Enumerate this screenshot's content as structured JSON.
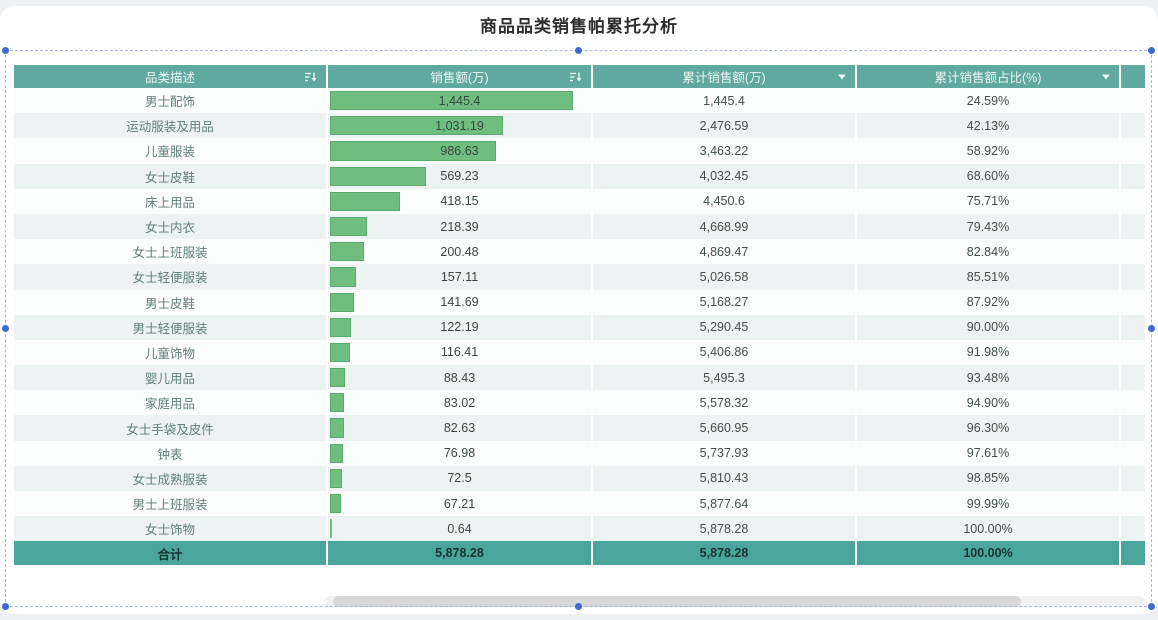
{
  "title": "商品品类销售帕累托分析",
  "table": {
    "columns": [
      {
        "label": "品类描述",
        "icon": "sort-icon"
      },
      {
        "label": "销售额(万)",
        "icon": "sort-icon"
      },
      {
        "label": "累计销售额(万)",
        "icon": "dropdown-icon"
      },
      {
        "label": "累计销售额占比(%)",
        "icon": "dropdown-icon"
      }
    ],
    "rows": [
      {
        "category": "男士配饰",
        "sales": "1,445.4",
        "sales_value": 1445.4,
        "cumulative": "1,445.4",
        "pct": "24.59%"
      },
      {
        "category": "运动服装及用品",
        "sales": "1,031.19",
        "sales_value": 1031.19,
        "cumulative": "2,476.59",
        "pct": "42.13%"
      },
      {
        "category": "儿童服装",
        "sales": "986.63",
        "sales_value": 986.63,
        "cumulative": "3,463.22",
        "pct": "58.92%"
      },
      {
        "category": "女士皮鞋",
        "sales": "569.23",
        "sales_value": 569.23,
        "cumulative": "4,032.45",
        "pct": "68.60%"
      },
      {
        "category": "床上用品",
        "sales": "418.15",
        "sales_value": 418.15,
        "cumulative": "4,450.6",
        "pct": "75.71%"
      },
      {
        "category": "女士内衣",
        "sales": "218.39",
        "sales_value": 218.39,
        "cumulative": "4,668.99",
        "pct": "79.43%"
      },
      {
        "category": "女士上班服装",
        "sales": "200.48",
        "sales_value": 200.48,
        "cumulative": "4,869.47",
        "pct": "82.84%"
      },
      {
        "category": "女士轻便服装",
        "sales": "157.11",
        "sales_value": 157.11,
        "cumulative": "5,026.58",
        "pct": "85.51%"
      },
      {
        "category": "男士皮鞋",
        "sales": "141.69",
        "sales_value": 141.69,
        "cumulative": "5,168.27",
        "pct": "87.92%"
      },
      {
        "category": "男士轻便服装",
        "sales": "122.19",
        "sales_value": 122.19,
        "cumulative": "5,290.45",
        "pct": "90.00%"
      },
      {
        "category": "儿童饰物",
        "sales": "116.41",
        "sales_value": 116.41,
        "cumulative": "5,406.86",
        "pct": "91.98%"
      },
      {
        "category": "婴儿用品",
        "sales": "88.43",
        "sales_value": 88.43,
        "cumulative": "5,495.3",
        "pct": "93.48%"
      },
      {
        "category": "家庭用品",
        "sales": "83.02",
        "sales_value": 83.02,
        "cumulative": "5,578.32",
        "pct": "94.90%"
      },
      {
        "category": "女士手袋及皮件",
        "sales": "82.63",
        "sales_value": 82.63,
        "cumulative": "5,660.95",
        "pct": "96.30%"
      },
      {
        "category": "钟表",
        "sales": "76.98",
        "sales_value": 76.98,
        "cumulative": "5,737.93",
        "pct": "97.61%"
      },
      {
        "category": "女士成熟服装",
        "sales": "72.5",
        "sales_value": 72.5,
        "cumulative": "5,810.43",
        "pct": "98.85%"
      },
      {
        "category": "男士上班服装",
        "sales": "67.21",
        "sales_value": 67.21,
        "cumulative": "5,877.64",
        "pct": "99.99%"
      },
      {
        "category": "女士饰物",
        "sales": "0.64",
        "sales_value": 0.64,
        "cumulative": "5,878.28",
        "pct": "100.00%"
      }
    ],
    "total": {
      "label": "合计",
      "sales": "5,878.28",
      "cumulative": "5,878.28",
      "pct": "100.00%"
    }
  },
  "colors": {
    "header_bg": "#5fa9a1",
    "total_bg": "#4aa69c",
    "bar_fill": "#6fbe80",
    "bar_border": "#5aab6f",
    "row_alt_bg": "#edf3f2",
    "selection_handle_blue": "#3e69cf",
    "selection_dash": "#a9b8da"
  },
  "chart_data": {
    "type": "table",
    "title": "商品品类销售帕累托分析",
    "columns": [
      "品类描述",
      "销售额(万)",
      "累计销售额(万)",
      "累计销售额占比(%)"
    ],
    "categories": [
      "男士配饰",
      "运动服装及用品",
      "儿童服装",
      "女士皮鞋",
      "床上用品",
      "女士内衣",
      "女士上班服装",
      "女士轻便服装",
      "男士皮鞋",
      "男士轻便服装",
      "儿童饰物",
      "婴儿用品",
      "家庭用品",
      "女士手袋及皮件",
      "钟表",
      "女士成熟服装",
      "男士上班服装",
      "女士饰物"
    ],
    "series": [
      {
        "name": "销售额(万)",
        "values": [
          1445.4,
          1031.19,
          986.63,
          569.23,
          418.15,
          218.39,
          200.48,
          157.11,
          141.69,
          122.19,
          116.41,
          88.43,
          83.02,
          82.63,
          76.98,
          72.5,
          67.21,
          0.64
        ]
      },
      {
        "name": "累计销售额(万)",
        "values": [
          1445.4,
          2476.59,
          3463.22,
          4032.45,
          4450.6,
          4668.99,
          4869.47,
          5026.58,
          5168.27,
          5290.45,
          5406.86,
          5495.3,
          5578.32,
          5660.95,
          5737.93,
          5810.43,
          5877.64,
          5878.28
        ]
      },
      {
        "name": "累计销售额占比(%)",
        "values": [
          24.59,
          42.13,
          58.92,
          68.6,
          75.71,
          79.43,
          82.84,
          85.51,
          87.92,
          90.0,
          91.98,
          93.48,
          94.9,
          96.3,
          97.61,
          98.85,
          99.99,
          100.0
        ]
      }
    ],
    "total_row": {
      "label": "合计",
      "销售额(万)": 5878.28,
      "累计销售额(万)": 5878.28,
      "累计销售额占比(%)": 100.0
    },
    "data_bars_column": "销售额(万)",
    "layout": {
      "sorted_by": "销售额(万) descending",
      "data_bar_max": 1445.4
    }
  }
}
